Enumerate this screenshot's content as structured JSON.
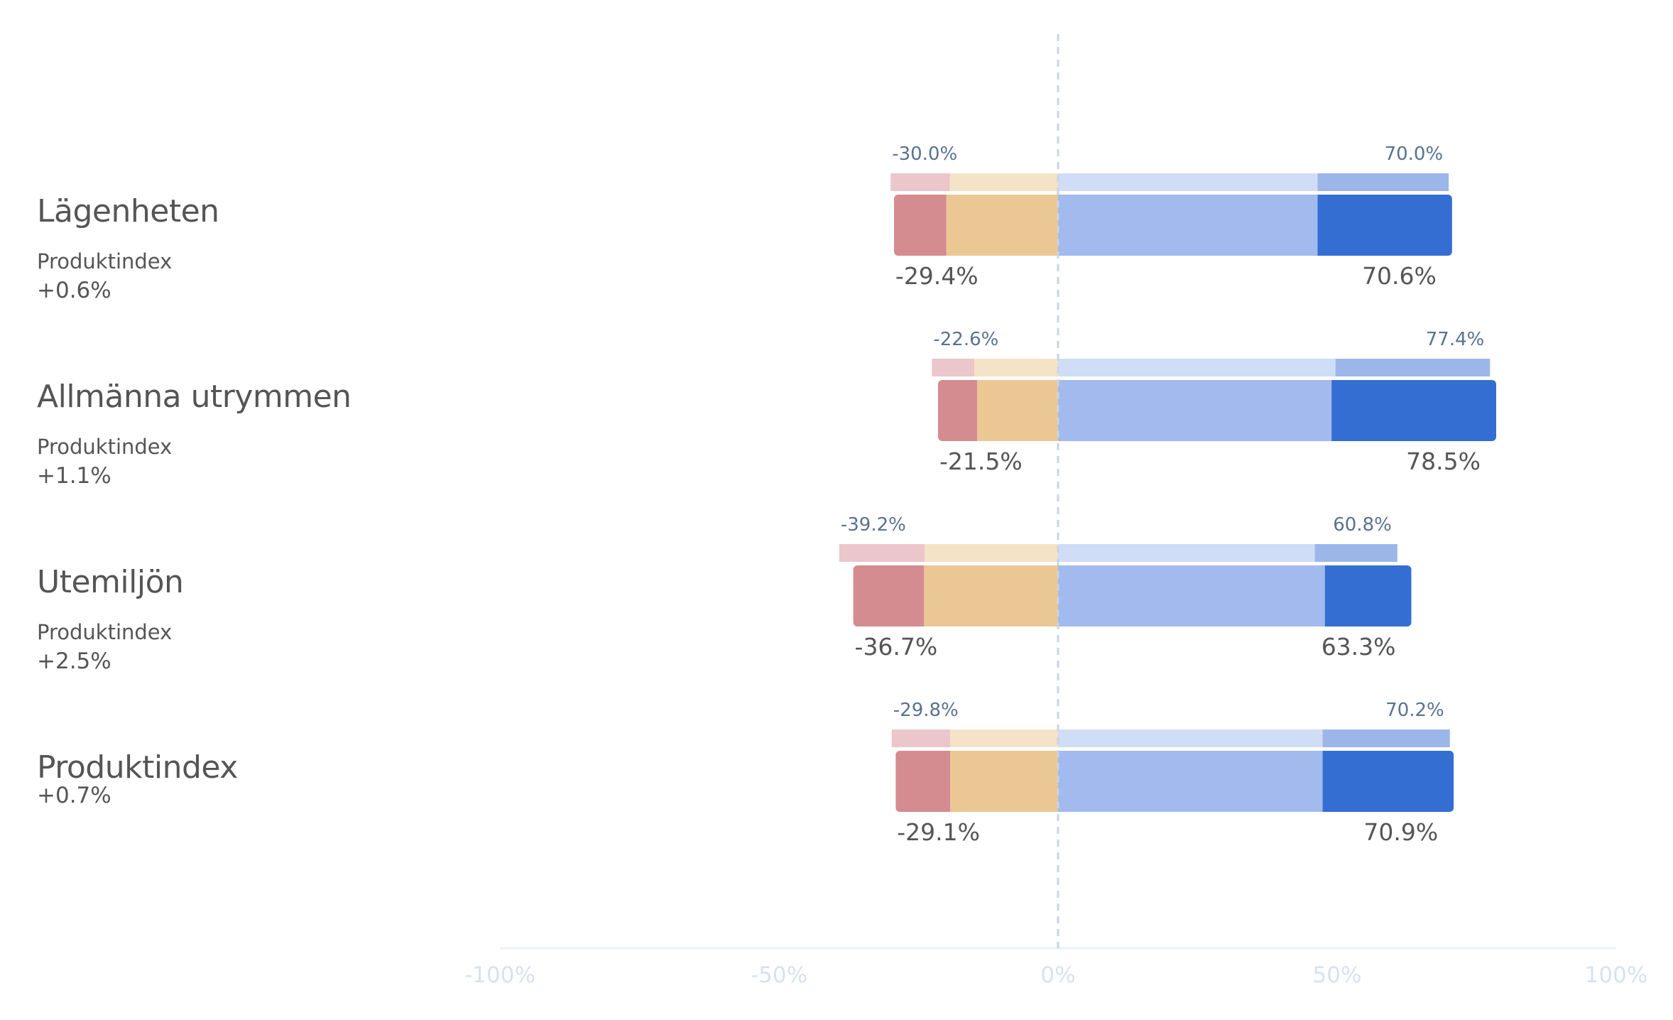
{
  "chart_data": {
    "type": "bar",
    "orientation": "horizontal-diverging",
    "x_axis": {
      "range": [
        -100,
        100
      ],
      "ticks": [
        -100,
        -50,
        0,
        50,
        100
      ],
      "tick_labels": [
        "-100%",
        "-50%",
        "0%",
        "50%",
        "100%"
      ]
    },
    "colors": {
      "strong_neg": "#d48c91",
      "neg": "#ebc794",
      "pos": "#a2baed",
      "strong_pos": "#356ed3",
      "ref_strong_neg": "#ebc6ca",
      "ref_neg": "#f5e3c8",
      "ref_pos": "#d0ddf6",
      "ref_strong_pos": "#9db6ea",
      "label_main": "#555555",
      "label_ref": "#5a7290",
      "axis_tick": "#d8e2ee",
      "zero_line": "#c9d4e3"
    },
    "rows": [
      {
        "title": "Lägenheten",
        "sub_label": "Produktindex",
        "sub_value": "+0.6%",
        "main": {
          "strong_neg": 9.4,
          "neg": 20.0,
          "pos": 46.5,
          "strong_pos": 24.1
        },
        "main_neg_label": "-29.4%",
        "main_pos_label": "70.6%",
        "ref": {
          "strong_neg": 10.6,
          "neg": 19.4,
          "pos": 46.5,
          "strong_pos": 23.5
        },
        "ref_neg_label": "-30.0%",
        "ref_pos_label": "70.0%"
      },
      {
        "title": "Allmänna utrymmen",
        "sub_label": "Produktindex",
        "sub_value": "+1.1%",
        "main": {
          "strong_neg": 7.0,
          "neg": 14.5,
          "pos": 49.0,
          "strong_pos": 29.5
        },
        "main_neg_label": "-21.5%",
        "main_pos_label": "78.5%",
        "ref": {
          "strong_neg": 7.6,
          "neg": 15.0,
          "pos": 49.7,
          "strong_pos": 27.7
        },
        "ref_neg_label": "-22.6%",
        "ref_pos_label": "77.4%"
      },
      {
        "title": "Utemiljön",
        "sub_label": "Produktindex",
        "sub_value": "+2.5%",
        "main": {
          "strong_neg": 12.7,
          "neg": 24.0,
          "pos": 47.8,
          "strong_pos": 15.5
        },
        "main_neg_label": "-36.7%",
        "main_pos_label": "63.3%",
        "ref": {
          "strong_neg": 15.3,
          "neg": 23.9,
          "pos": 46.0,
          "strong_pos": 14.8
        },
        "ref_neg_label": "-39.2%",
        "ref_pos_label": "60.8%"
      },
      {
        "title": "Produktindex",
        "sub_label": "",
        "sub_value": "+0.7%",
        "main": {
          "strong_neg": 9.8,
          "neg": 19.3,
          "pos": 47.4,
          "strong_pos": 23.5
        },
        "main_neg_label": "-29.1%",
        "main_pos_label": "70.9%",
        "ref": {
          "strong_neg": 10.5,
          "neg": 19.3,
          "pos": 47.4,
          "strong_pos": 22.8
        },
        "ref_neg_label": "-29.8%",
        "ref_pos_label": "70.2%"
      }
    ]
  }
}
